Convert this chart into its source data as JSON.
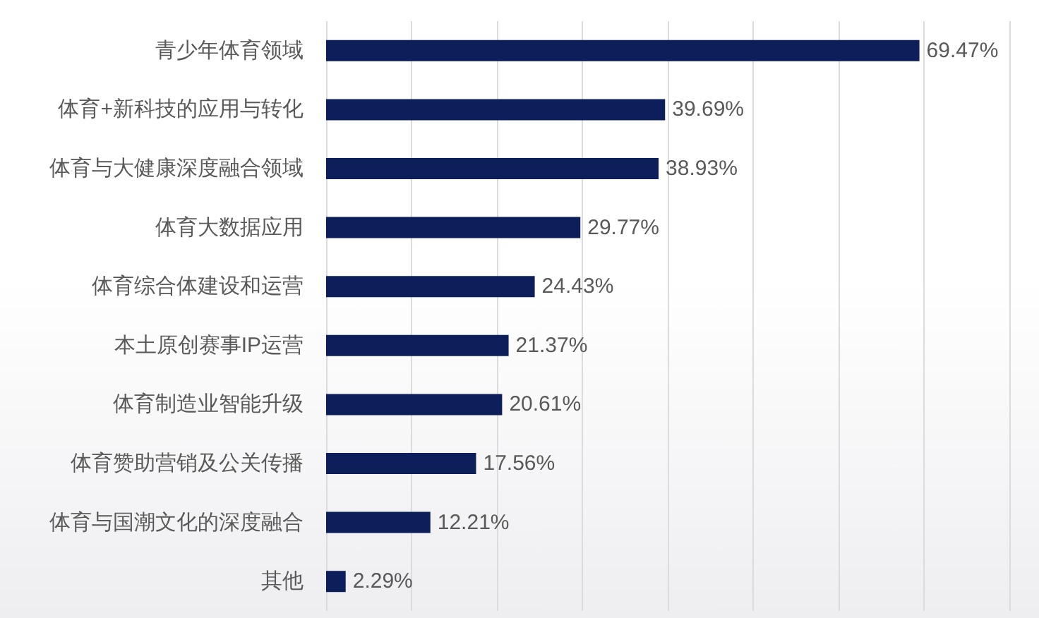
{
  "chart_data": {
    "type": "bar",
    "orientation": "horizontal",
    "categories": [
      "青少年体育领域",
      "体育+新科技的应用与转化",
      "体育与大健康深度融合领域",
      "体育大数据应用",
      "体育综合体建设和运营",
      "本土原创赛事IP运营",
      "体育制造业智能升级",
      "体育赞助营销及公关传播",
      "体育与国潮文化的深度融合",
      "其他"
    ],
    "values": [
      69.47,
      39.69,
      38.93,
      29.77,
      24.43,
      21.37,
      20.61,
      17.56,
      12.21,
      2.29
    ],
    "value_labels": [
      "69.47%",
      "39.69%",
      "38.93%",
      "29.77%",
      "24.43%",
      "21.37%",
      "20.61%",
      "17.56%",
      "12.21%",
      "2.29%"
    ],
    "color": "#0c1f5b",
    "xlim": [
      0,
      80
    ],
    "xticks": [
      {
        "value": 0,
        "label": null
      },
      {
        "value": 10,
        "label": null
      },
      {
        "value": 20,
        "label": null
      },
      {
        "value": 30,
        "label": null
      },
      {
        "value": 40,
        "label": null
      },
      {
        "value": 50,
        "label": null
      },
      {
        "value": 60,
        "label": null
      },
      {
        "value": 70,
        "label": null
      },
      {
        "value": 80,
        "label": null
      }
    ],
    "grid": "x",
    "tick_labels": "y"
  }
}
